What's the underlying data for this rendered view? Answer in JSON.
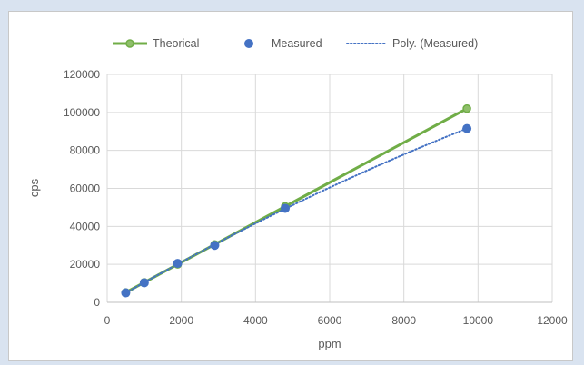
{
  "chart_data": {
    "type": "scatter",
    "xlabel": "ppm",
    "ylabel": "cps",
    "xlim": [
      0,
      12000
    ],
    "ylim": [
      0,
      120000
    ],
    "x_ticks": [
      "0",
      "2000",
      "4000",
      "6000",
      "8000",
      "10000",
      "12000"
    ],
    "y_ticks": [
      "0",
      "20000",
      "40000",
      "60000",
      "80000",
      "100000",
      "120000"
    ],
    "grid": true,
    "legend_position": "top",
    "legend": [
      "Theorical",
      "Measured",
      "Poly. (Measured)"
    ],
    "series": [
      {
        "name": "Theorical",
        "style": "line-with-markers",
        "color": "#70ad47",
        "x": [
          500,
          1000,
          1900,
          2900,
          4800,
          9700
        ],
        "y": [
          5200,
          10500,
          20000,
          30500,
          50500,
          102000
        ]
      },
      {
        "name": "Measured",
        "style": "markers",
        "color": "#4472c4",
        "x": [
          500,
          1000,
          1900,
          2900,
          4800,
          9700
        ],
        "y": [
          5000,
          10300,
          20500,
          30000,
          49500,
          91500
        ]
      },
      {
        "name": "Poly. (Measured)",
        "style": "dotted-trendline",
        "color": "#4472c4",
        "x": [
          500,
          1000,
          1900,
          2900,
          4800,
          9700
        ],
        "y": [
          5000,
          10300,
          20500,
          30000,
          49500,
          91500
        ]
      }
    ]
  }
}
